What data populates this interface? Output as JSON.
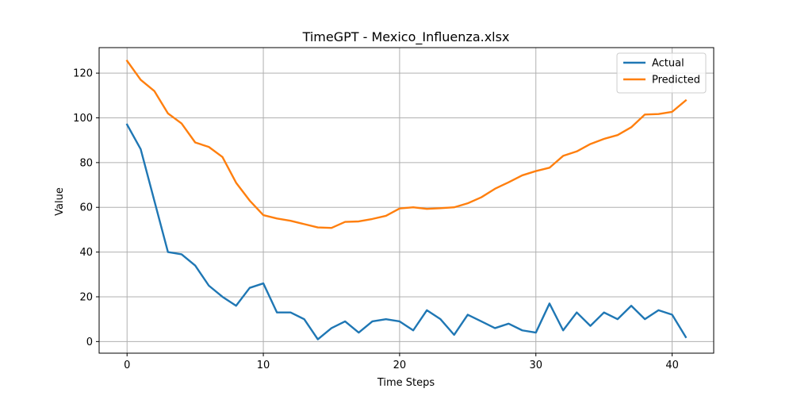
{
  "chart_data": {
    "type": "line",
    "title": "TimeGPT - Mexico_Influenza.xlsx",
    "xlabel": "Time Steps",
    "ylabel": "Value",
    "xlim": [
      -2.05,
      43.05
    ],
    "ylim": [
      -5.2,
      131.4
    ],
    "xticks": [
      0,
      10,
      20,
      30,
      40
    ],
    "yticks": [
      0,
      20,
      40,
      60,
      80,
      100,
      120
    ],
    "grid": true,
    "legend_position": "top-right",
    "x": [
      0,
      1,
      2,
      3,
      4,
      5,
      6,
      7,
      8,
      9,
      10,
      11,
      12,
      13,
      14,
      15,
      16,
      17,
      18,
      19,
      20,
      21,
      22,
      23,
      24,
      25,
      26,
      27,
      28,
      29,
      30,
      31,
      32,
      33,
      34,
      35,
      36,
      37,
      38,
      39,
      40,
      41
    ],
    "series": [
      {
        "name": "Actual",
        "color": "#1f77b4",
        "values": [
          97,
          86,
          63,
          40,
          39,
          34,
          25,
          20,
          16,
          24,
          26,
          13,
          13,
          10,
          1,
          6,
          9,
          4,
          9,
          10,
          9,
          5,
          14,
          10,
          3,
          12,
          9,
          6,
          8,
          5,
          4,
          17,
          5,
          13,
          7,
          13,
          10,
          16,
          10,
          14,
          12,
          2
        ]
      },
      {
        "name": "Predicted",
        "color": "#ff7f0e",
        "values": [
          125.5,
          117,
          112,
          102,
          97.5,
          89,
          87,
          82.5,
          71,
          63,
          56.5,
          55,
          54,
          52.5,
          51,
          50.8,
          53.5,
          53.7,
          54.8,
          56.2,
          59.5,
          60,
          59.3,
          59.6,
          60,
          61.8,
          64.5,
          68.3,
          71.2,
          74.3,
          76.2,
          77.7,
          83,
          85,
          88.3,
          90.6,
          92.3,
          95.8,
          101.5,
          101.7,
          102.7,
          107.8
        ]
      }
    ]
  }
}
